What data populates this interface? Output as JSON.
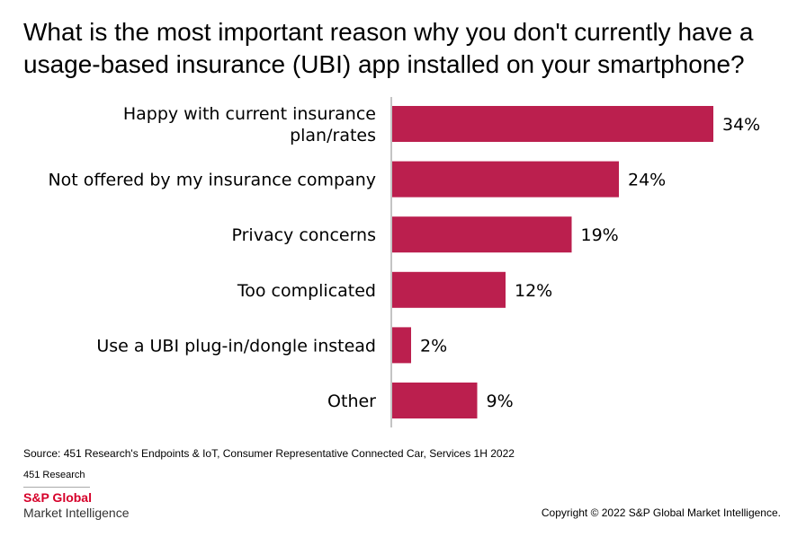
{
  "title": "What is the most important reason why you don't currently have a usage-based insurance (UBI) app installed on your smartphone?",
  "footer": {
    "source": "Source: 451 Research's Endpoints & IoT, Consumer Representative Connected Car, Services 1H 2022",
    "research": "451 Research",
    "brand": "S&P Global",
    "brand_sub": "Market Intelligence",
    "copyright": "Copyright © 2022 S&P Global Market Intelligence."
  },
  "colors": {
    "bar": "#BB1F4E",
    "brand_red": "#D6002A",
    "axis": "#888888"
  },
  "chart_data": {
    "type": "bar",
    "orientation": "horizontal",
    "categories": [
      [
        "Happy with current insurance",
        "plan/rates"
      ],
      [
        "Not offered by my insurance company"
      ],
      [
        "Privacy concerns"
      ],
      [
        "Too complicated"
      ],
      [
        "Use a UBI plug-in/dongle instead"
      ],
      [
        "Other"
      ]
    ],
    "values": [
      34,
      24,
      19,
      12,
      2,
      9
    ],
    "value_labels": [
      "34%",
      "24%",
      "19%",
      "12%",
      "2%",
      "9%"
    ],
    "xlim": [
      0,
      34
    ],
    "grid": false,
    "legend": "none"
  }
}
